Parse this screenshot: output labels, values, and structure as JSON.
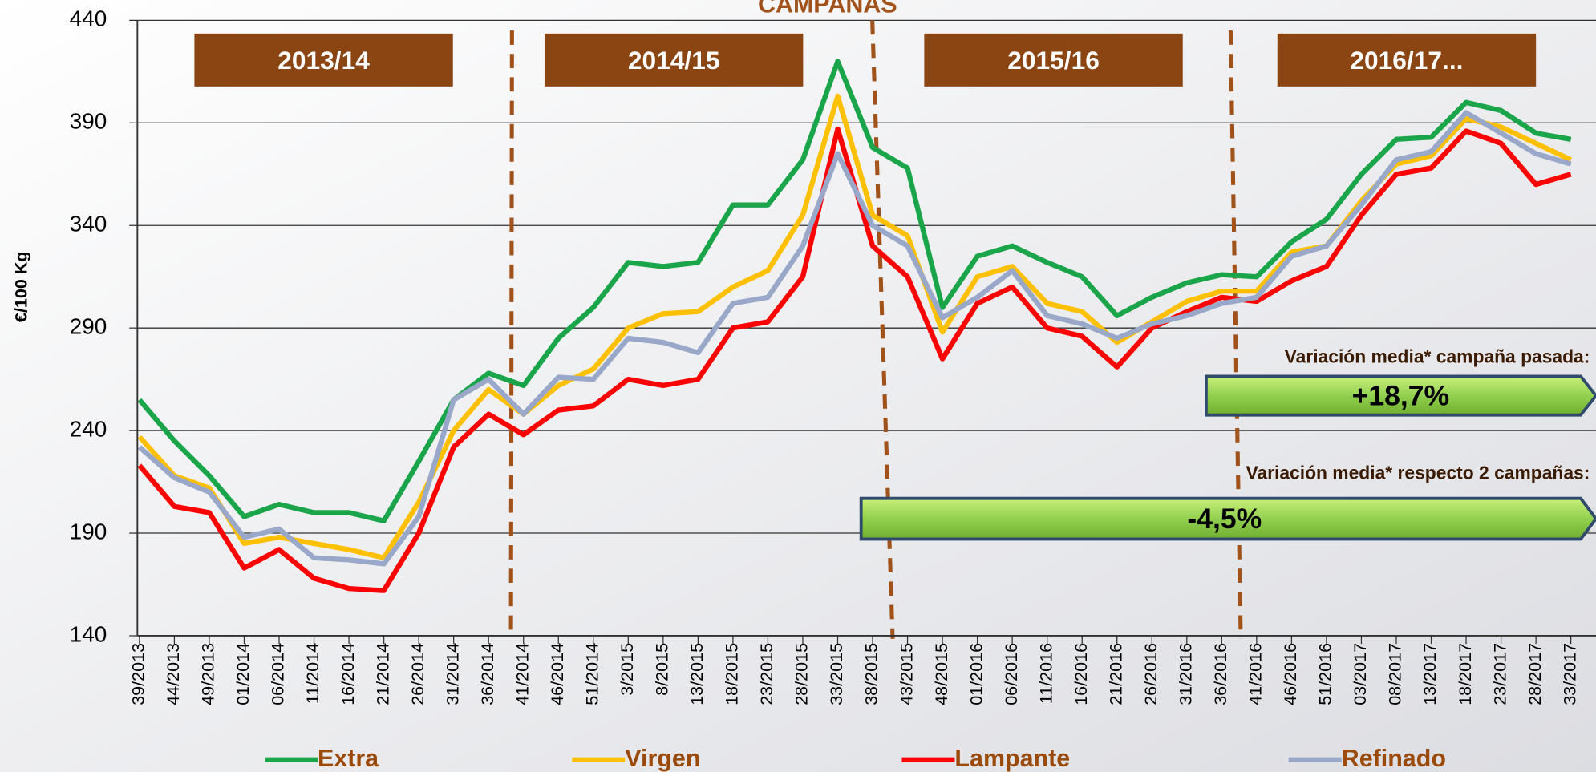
{
  "chart_data": {
    "type": "line",
    "title": "CAMPAÑAS",
    "y_label": "€/100 Kg",
    "categories": [
      "39/2013",
      "44/2013",
      "49/2013",
      "01/2014",
      "06/2014",
      "11/2014",
      "16/2014",
      "21/2014",
      "26/2014",
      "31/2014",
      "36/2014",
      "41/2014",
      "46/2014",
      "51/2014",
      "3/2015",
      "8/2015",
      "13/2015",
      "18/2015",
      "23/2015",
      "28/2015",
      "33/2015",
      "38/2015",
      "43/2015",
      "48/2015",
      "01/2016",
      "06/2016",
      "11/2016",
      "16/2016",
      "21/2016",
      "26/2016",
      "31/2016",
      "36/2016",
      "41/2016",
      "46/2016",
      "51/2016",
      "03/2017",
      "08/2017",
      "13/2017",
      "18/2017",
      "23/2017",
      "28/2017",
      "33/2017"
    ],
    "series": [
      {
        "name": "Extra",
        "color": "#1aa54a",
        "values": [
          255,
          235,
          218,
          198,
          204,
          200,
          200,
          196,
          225,
          255,
          268,
          262,
          285,
          300,
          322,
          320,
          322,
          350,
          350,
          372,
          420,
          378,
          368,
          300,
          325,
          330,
          322,
          315,
          296,
          305,
          312,
          316,
          315,
          332,
          343,
          365,
          382,
          383,
          400,
          396,
          385,
          382
        ]
      },
      {
        "name": "Virgen",
        "color": "#ffc000",
        "values": [
          237,
          218,
          212,
          185,
          188,
          185,
          182,
          178,
          205,
          240,
          260,
          248,
          262,
          270,
          290,
          297,
          298,
          310,
          318,
          345,
          403,
          345,
          335,
          288,
          315,
          320,
          302,
          298,
          283,
          293,
          303,
          308,
          308,
          327,
          330,
          352,
          370,
          374,
          392,
          388,
          380,
          372
        ]
      },
      {
        "name": "Lampante",
        "color": "#ff0000",
        "values": [
          223,
          203,
          200,
          173,
          182,
          168,
          163,
          162,
          190,
          232,
          248,
          238,
          250,
          252,
          265,
          262,
          265,
          290,
          293,
          315,
          387,
          330,
          315,
          275,
          302,
          310,
          290,
          286,
          271,
          290,
          298,
          305,
          303,
          313,
          320,
          345,
          365,
          368,
          386,
          380,
          360,
          365
        ]
      },
      {
        "name": "Refinado",
        "color": "#99a8c8",
        "values": [
          232,
          217,
          210,
          188,
          192,
          178,
          177,
          175,
          198,
          255,
          265,
          248,
          266,
          265,
          285,
          283,
          278,
          302,
          305,
          330,
          375,
          340,
          330,
          295,
          305,
          318,
          296,
          292,
          285,
          292,
          296,
          302,
          305,
          325,
          330,
          350,
          372,
          376,
          395,
          385,
          375,
          370
        ]
      }
    ],
    "ylim": [
      140,
      440
    ],
    "yticks": [
      140,
      190,
      240,
      290,
      340,
      390,
      440
    ],
    "grid": true,
    "campaigns": [
      "2013/14",
      "2014/15",
      "2015/16",
      "2016/17..."
    ],
    "annotations": {
      "last_label": "Variación media* campaña pasada:",
      "last_value": "+18,7%",
      "two_label": "Variación media* respecto 2 campañas:",
      "two_value": "-4,5%"
    }
  }
}
